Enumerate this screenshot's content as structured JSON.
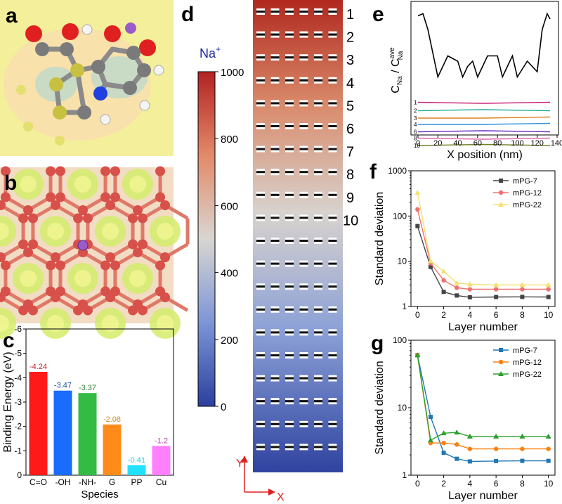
{
  "panel_labels": {
    "a": "a",
    "b": "b",
    "c": "c",
    "d": "d",
    "e": "e",
    "f": "f",
    "g": "g"
  },
  "colors": {
    "mol_bg": "#f4ef9a",
    "lattice_bg": "#f2dcc4",
    "bond": "#e07868",
    "atom": "#d8504a",
    "sodium": "#9a5cc8",
    "hot": "#b22222",
    "cold": "#2c3f9e"
  },
  "panel_a": {
    "atoms": [
      "O",
      "O",
      "H",
      "C",
      "N",
      "Na"
    ]
  },
  "panel_b": {
    "probe_atom": "Na"
  },
  "panel_c": {
    "colorbar_title": "Na",
    "colorbar_title_sup": "+",
    "colorbar_ticks": [
      "1000",
      "800",
      "600",
      "400",
      "200",
      "0"
    ]
  },
  "panel_d": {
    "row_labels": [
      "1",
      "2",
      "3",
      "4",
      "5",
      "6",
      "7",
      "8",
      "9",
      "10"
    ],
    "axis_y": "Y",
    "axis_x": "X"
  },
  "panel_e": {
    "xlabel": "X position (nm)",
    "ylabel_main": "C",
    "ylabel_sub1": "Na",
    "ylabel_sep": " / ",
    "ylabel_sup": "ave",
    "ylabel_sub2": "Na",
    "xticks": [
      "0",
      "20",
      "40",
      "60",
      "80",
      "100",
      "120",
      "140"
    ],
    "layer_labels": [
      "1",
      "2",
      "3",
      "4",
      "6",
      "8",
      "10"
    ]
  },
  "chart_data": [
    {
      "id": "c",
      "type": "bar",
      "xlabel": "Species",
      "ylabel": "Binding Energy (eV)",
      "categories": [
        "C=O",
        "-OH",
        "-NH-",
        "G",
        "PP",
        "Cu"
      ],
      "values": [
        -4.24,
        -3.47,
        -3.37,
        -2.08,
        -0.41,
        -1.2
      ],
      "value_labels": [
        "-4.24",
        "-3.47",
        "-3.37",
        "-2.08",
        "-0.41",
        "-1.2"
      ],
      "colors": [
        "#ff1a1a",
        "#1a6cff",
        "#33bb44",
        "#ff8c1a",
        "#22e0ff",
        "#ff80ff"
      ],
      "label_colors": [
        "#c0202a",
        "#1d4fa0",
        "#2a8a38",
        "#d08a1a",
        "#20c8d8",
        "#b040b0"
      ],
      "ylim": [
        0,
        -6
      ],
      "yticks": [
        "0",
        "-1",
        "-2",
        "-3",
        "-4",
        "-5",
        "-6"
      ],
      "grid": false
    },
    {
      "id": "f",
      "type": "line",
      "xlabel": "Layer number",
      "ylabel": "Standard deviation",
      "yscale": "log",
      "ylim": [
        1,
        1000
      ],
      "xlim": [
        -0.5,
        10.5
      ],
      "xticks": [
        "0",
        "2",
        "4",
        "6",
        "8",
        "10"
      ],
      "yticks": [
        "1",
        "10",
        "100",
        "1000"
      ],
      "legend": "top-right",
      "grid": false,
      "x": [
        0,
        1,
        2,
        3,
        4,
        6,
        8,
        10
      ],
      "series": [
        {
          "name": "mPG-7",
          "color": "#444444",
          "marker": "square",
          "values": [
            60,
            7.5,
            2.1,
            1.75,
            1.6,
            1.62,
            1.63,
            1.62
          ]
        },
        {
          "name": "mPG-12",
          "color": "#f07070",
          "marker": "circle",
          "values": [
            140,
            9,
            3.8,
            2.6,
            2.4,
            2.4,
            2.4,
            2.4
          ]
        },
        {
          "name": "mPG-22",
          "color": "#f5e070",
          "marker": "triangle",
          "values": [
            330,
            10,
            6,
            3.3,
            3.1,
            3.0,
            3.0,
            3.0
          ]
        }
      ]
    },
    {
      "id": "g",
      "type": "line",
      "xlabel": "Layer number",
      "ylabel": "Standard deviation",
      "yscale": "log",
      "ylim": [
        1,
        100
      ],
      "xlim": [
        -0.5,
        10.5
      ],
      "xticks": [
        "0",
        "2",
        "4",
        "6",
        "8",
        "10"
      ],
      "yticks": [
        "1",
        "10",
        "100"
      ],
      "legend": "top-right",
      "grid": false,
      "x": [
        0,
        1,
        2,
        3,
        4,
        6,
        8,
        10
      ],
      "series": [
        {
          "name": "mPG-7",
          "color": "#1f77b4",
          "marker": "square",
          "values": [
            60,
            7.3,
            2.15,
            1.75,
            1.6,
            1.62,
            1.63,
            1.63
          ]
        },
        {
          "name": "mPG-12",
          "color": "#ff7f0e",
          "marker": "circle",
          "values": [
            60,
            3.0,
            3.0,
            2.85,
            2.45,
            2.45,
            2.45,
            2.45
          ]
        },
        {
          "name": "mPG-22",
          "color": "#2ca02c",
          "marker": "triangle",
          "values": [
            60,
            3.3,
            4.2,
            4.3,
            3.75,
            3.75,
            3.75,
            3.75
          ]
        }
      ]
    },
    {
      "id": "e",
      "type": "line",
      "xlabel": "X position (nm)",
      "xlim": [
        0,
        140
      ],
      "grid": false,
      "series": [
        {
          "name": "",
          "color": "#000000",
          "x": [
            0,
            5,
            10,
            20,
            30,
            40,
            45,
            50,
            55,
            60,
            70,
            80,
            85,
            90,
            95,
            100,
            110,
            120,
            125,
            130,
            133
          ],
          "values": [
            0.93,
            0.95,
            0.8,
            0.35,
            0.55,
            0.5,
            0.35,
            0.45,
            0.5,
            0.35,
            0.55,
            0.55,
            0.35,
            0.45,
            0.55,
            0.35,
            0.5,
            0.4,
            0.8,
            0.95,
            0.9
          ]
        },
        {
          "name": "1",
          "color": "#c81e78",
          "x": [
            0,
            66,
            133
          ],
          "values": [
            0.11,
            0.1,
            0.11
          ]
        },
        {
          "name": "2",
          "color": "#20b0a0",
          "x": [
            0,
            66,
            133
          ],
          "values": [
            0.03,
            0.04,
            0.03
          ]
        },
        {
          "name": "3",
          "color": "#e08020",
          "x": [
            0,
            66,
            133
          ],
          "values": [
            -0.04,
            -0.04,
            -0.03
          ]
        },
        {
          "name": "4",
          "color": "#3090e0",
          "x": [
            0,
            66,
            133
          ],
          "values": [
            -0.1,
            -0.1,
            -0.09
          ]
        },
        {
          "name": "6",
          "color": "#6a2cc0",
          "x": [
            0,
            66,
            133
          ],
          "values": [
            -0.17,
            -0.16,
            -0.17
          ]
        },
        {
          "name": "8",
          "color": "#e060b0",
          "x": [
            0,
            66,
            133
          ],
          "values": [
            -0.23,
            -0.24,
            -0.23
          ]
        },
        {
          "name": "10",
          "color": "#708020",
          "x": [
            0,
            66,
            133
          ],
          "values": [
            -0.3,
            -0.29,
            -0.3
          ]
        }
      ]
    }
  ]
}
